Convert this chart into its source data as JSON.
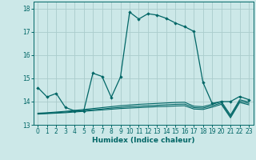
{
  "xlabel": "Humidex (Indice chaleur)",
  "background_color": "#cce8e8",
  "grid_color": "#aacccc",
  "line_color": "#006666",
  "xlim": [
    -0.5,
    23.5
  ],
  "ylim": [
    13.0,
    18.3
  ],
  "yticks": [
    13,
    14,
    15,
    16,
    17,
    18
  ],
  "xticks": [
    0,
    1,
    2,
    3,
    4,
    5,
    6,
    7,
    8,
    9,
    10,
    11,
    12,
    13,
    14,
    15,
    16,
    17,
    18,
    19,
    20,
    21,
    22,
    23
  ],
  "series0": [
    14.6,
    14.2,
    14.35,
    13.75,
    13.6,
    13.6,
    15.22,
    15.08,
    14.18,
    15.05,
    17.85,
    17.55,
    17.78,
    17.72,
    17.58,
    17.38,
    17.22,
    17.02,
    14.82,
    13.92,
    14.0,
    14.0,
    14.22,
    14.08
  ],
  "series1": [
    13.5,
    13.52,
    13.55,
    13.58,
    13.62,
    13.66,
    13.7,
    13.74,
    13.78,
    13.82,
    13.85,
    13.88,
    13.9,
    13.92,
    13.94,
    13.96,
    13.97,
    13.8,
    13.78,
    13.88,
    14.0,
    13.42,
    14.08,
    13.98
  ],
  "series2": [
    13.48,
    13.5,
    13.52,
    13.55,
    13.58,
    13.62,
    13.65,
    13.68,
    13.72,
    13.75,
    13.78,
    13.8,
    13.82,
    13.84,
    13.86,
    13.88,
    13.89,
    13.74,
    13.72,
    13.82,
    13.94,
    13.36,
    14.02,
    13.92
  ],
  "series3": [
    13.46,
    13.48,
    13.5,
    13.52,
    13.55,
    13.58,
    13.61,
    13.64,
    13.67,
    13.7,
    13.72,
    13.74,
    13.76,
    13.78,
    13.79,
    13.81,
    13.82,
    13.68,
    13.66,
    13.76,
    13.88,
    13.3,
    13.96,
    13.86
  ]
}
